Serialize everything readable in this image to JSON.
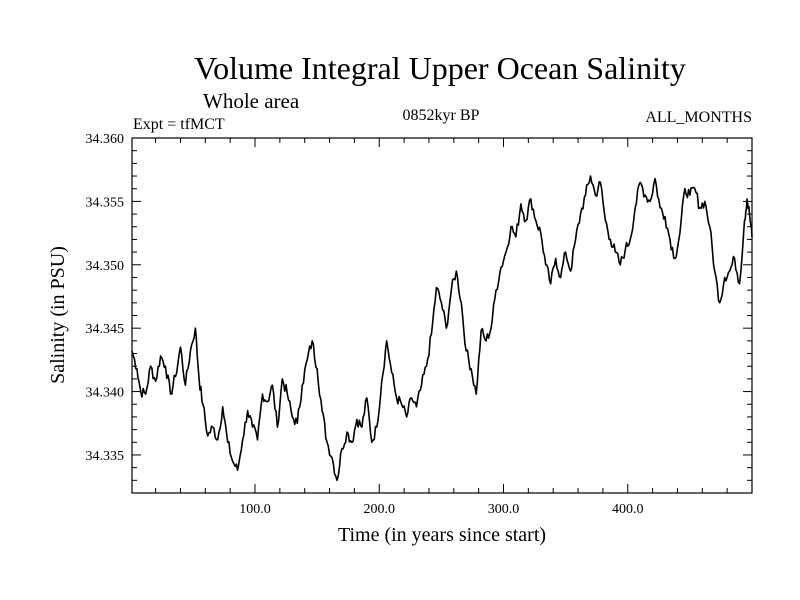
{
  "chart_data": {
    "type": "line",
    "title": "Volume Integral Upper Ocean Salinity",
    "subtitle": "Whole area",
    "header_left": "Expt = tfMCT",
    "header_center": "0852kyr BP",
    "header_right": "ALL_MONTHS",
    "xlabel": "Time (in years since start)",
    "ylabel": "Salinity (in PSU)",
    "xlim": [
      1,
      500
    ],
    "ylim": [
      34.332,
      34.36
    ],
    "x_ticks": [
      100,
      200,
      300,
      400
    ],
    "x_tick_labels": [
      "100.0",
      "200.0",
      "300.0",
      "400.0"
    ],
    "y_ticks": [
      34.335,
      34.34,
      34.345,
      34.35,
      34.355,
      34.36
    ],
    "y_tick_labels": [
      "34.335",
      "34.340",
      "34.345",
      "34.350",
      "34.355",
      "34.360"
    ],
    "series": [
      {
        "name": "Salinity",
        "color": "#000000",
        "points": [
          [
            1,
            34.3432
          ],
          [
            5,
            34.3418
          ],
          [
            8,
            34.34
          ],
          [
            12,
            34.3398
          ],
          [
            16,
            34.342
          ],
          [
            20,
            34.3408
          ],
          [
            24,
            34.3428
          ],
          [
            28,
            34.342
          ],
          [
            32,
            34.3398
          ],
          [
            36,
            34.3412
          ],
          [
            40,
            34.3435
          ],
          [
            44,
            34.3405
          ],
          [
            48,
            34.3432
          ],
          [
            52,
            34.345
          ],
          [
            55,
            34.341
          ],
          [
            58,
            34.339
          ],
          [
            62,
            34.3365
          ],
          [
            66,
            34.3372
          ],
          [
            70,
            34.3362
          ],
          [
            74,
            34.3388
          ],
          [
            78,
            34.336
          ],
          [
            82,
            34.3345
          ],
          [
            86,
            34.3338
          ],
          [
            90,
            34.3362
          ],
          [
            94,
            34.3385
          ],
          [
            98,
            34.3372
          ],
          [
            102,
            34.3362
          ],
          [
            106,
            34.3398
          ],
          [
            110,
            34.3392
          ],
          [
            114,
            34.3405
          ],
          [
            118,
            34.3372
          ],
          [
            122,
            34.341
          ],
          [
            126,
            34.3398
          ],
          [
            130,
            34.338
          ],
          [
            134,
            34.3375
          ],
          [
            138,
            34.3405
          ],
          [
            142,
            34.3425
          ],
          [
            146,
            34.344
          ],
          [
            150,
            34.3418
          ],
          [
            154,
            34.3385
          ],
          [
            158,
            34.336
          ],
          [
            162,
            34.3348
          ],
          [
            166,
            34.333
          ],
          [
            170,
            34.3355
          ],
          [
            174,
            34.3368
          ],
          [
            178,
            34.336
          ],
          [
            182,
            34.3378
          ],
          [
            186,
            34.3372
          ],
          [
            190,
            34.3395
          ],
          [
            194,
            34.336
          ],
          [
            198,
            34.3372
          ],
          [
            202,
            34.3408
          ],
          [
            206,
            34.344
          ],
          [
            210,
            34.3415
          ],
          [
            214,
            34.3395
          ],
          [
            218,
            34.339
          ],
          [
            222,
            34.338
          ],
          [
            226,
            34.3395
          ],
          [
            230,
            34.3388
          ],
          [
            234,
            34.3405
          ],
          [
            238,
            34.342
          ],
          [
            242,
            34.3445
          ],
          [
            246,
            34.3482
          ],
          [
            250,
            34.347
          ],
          [
            254,
            34.345
          ],
          [
            258,
            34.348
          ],
          [
            262,
            34.3495
          ],
          [
            266,
            34.347
          ],
          [
            270,
            34.3432
          ],
          [
            274,
            34.3418
          ],
          [
            278,
            34.3398
          ],
          [
            282,
            34.3448
          ],
          [
            286,
            34.344
          ],
          [
            290,
            34.345
          ],
          [
            294,
            34.348
          ],
          [
            298,
            34.3498
          ],
          [
            302,
            34.351
          ],
          [
            306,
            34.353
          ],
          [
            310,
            34.3522
          ],
          [
            314,
            34.3548
          ],
          [
            318,
            34.3535
          ],
          [
            322,
            34.3552
          ],
          [
            326,
            34.3535
          ],
          [
            330,
            34.3525
          ],
          [
            334,
            34.35
          ],
          [
            338,
            34.3485
          ],
          [
            342,
            34.3505
          ],
          [
            346,
            34.349
          ],
          [
            350,
            34.351
          ],
          [
            354,
            34.3495
          ],
          [
            358,
            34.352
          ],
          [
            362,
            34.354
          ],
          [
            366,
            34.3555
          ],
          [
            370,
            34.357
          ],
          [
            374,
            34.3555
          ],
          [
            378,
            34.3565
          ],
          [
            382,
            34.3535
          ],
          [
            386,
            34.352
          ],
          [
            390,
            34.351
          ],
          [
            394,
            34.35
          ],
          [
            398,
            34.3512
          ],
          [
            402,
            34.352
          ],
          [
            406,
            34.3545
          ],
          [
            410,
            34.3565
          ],
          [
            414,
            34.3555
          ],
          [
            418,
            34.355
          ],
          [
            422,
            34.3568
          ],
          [
            426,
            34.3545
          ],
          [
            430,
            34.3538
          ],
          [
            434,
            34.352
          ],
          [
            438,
            34.3505
          ],
          [
            442,
            34.3525
          ],
          [
            446,
            34.356
          ],
          [
            450,
            34.3555
          ],
          [
            454,
            34.356
          ],
          [
            458,
            34.3545
          ],
          [
            462,
            34.355
          ],
          [
            466,
            34.353
          ],
          [
            470,
            34.3495
          ],
          [
            474,
            34.347
          ],
          [
            478,
            34.349
          ],
          [
            482,
            34.3495
          ],
          [
            486,
            34.3505
          ],
          [
            490,
            34.3485
          ],
          [
            494,
            34.3535
          ],
          [
            496,
            34.3552
          ],
          [
            498,
            34.354
          ],
          [
            500,
            34.3522
          ]
        ]
      }
    ]
  }
}
